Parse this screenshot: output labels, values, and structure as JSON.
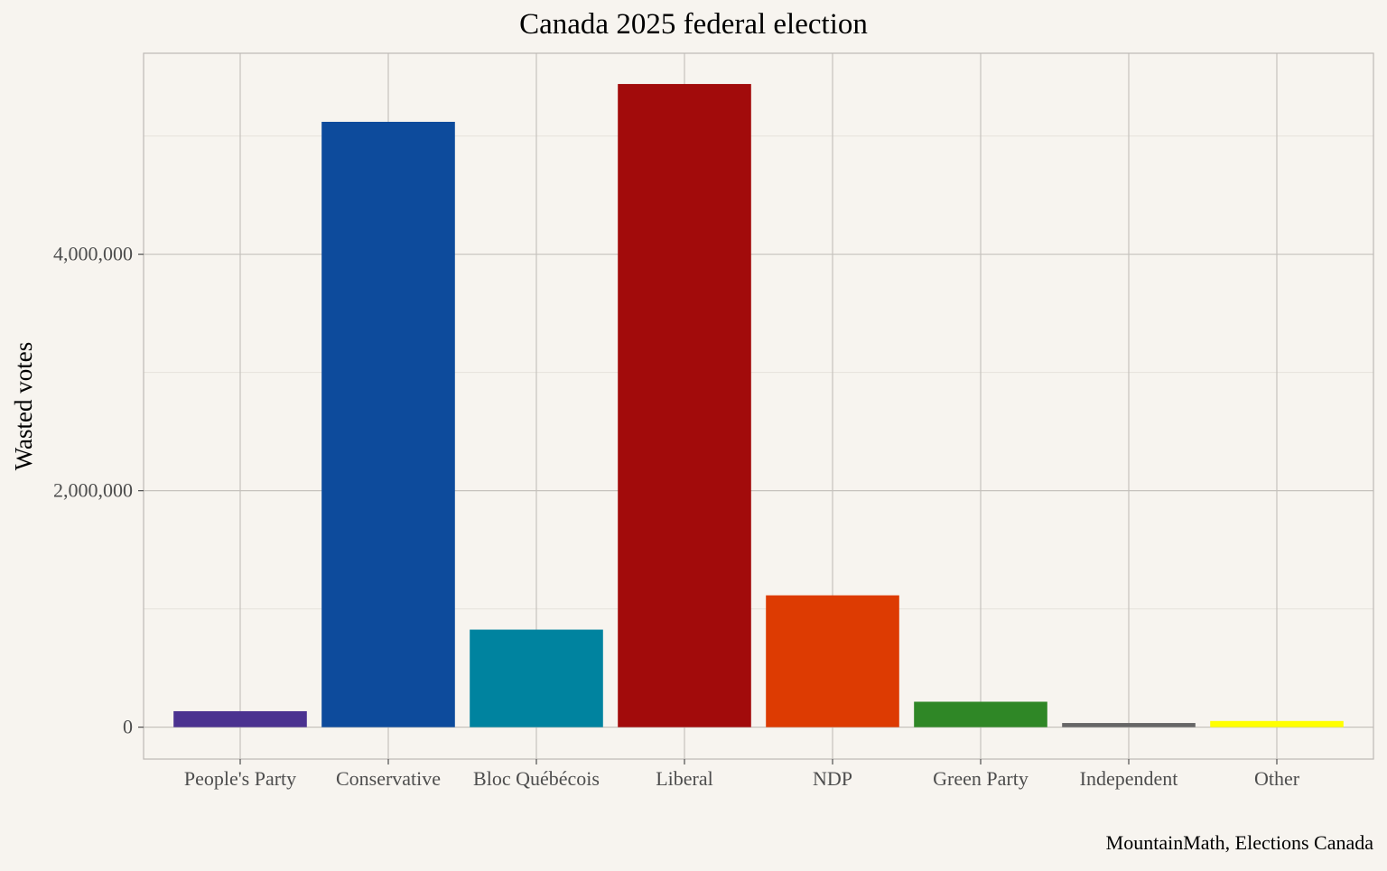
{
  "chart_data": {
    "type": "bar",
    "title": "Canada 2025 federal election",
    "xlabel": "",
    "ylabel": "Wasted votes",
    "caption": "MountainMath, Elections Canada",
    "categories": [
      "People's Party",
      "Conservative",
      "Bloc Québécois",
      "Liberal",
      "NDP",
      "Green Party",
      "Independent",
      "Other"
    ],
    "values": [
      135000,
      5120000,
      825000,
      5440000,
      1115000,
      215000,
      35000,
      52000
    ],
    "colors": [
      "#4b3290",
      "#0d4b9c",
      "#00839f",
      "#a20b0b",
      "#dd3b02",
      "#2f8726",
      "#666666",
      "#ffff00"
    ],
    "ylim": [
      -270000,
      5700000
    ],
    "yticks": [
      0,
      2000000,
      4000000
    ],
    "ytick_labels": [
      "0",
      "2,000,000",
      "4,000,000"
    ],
    "grid": true,
    "legend": "none"
  }
}
